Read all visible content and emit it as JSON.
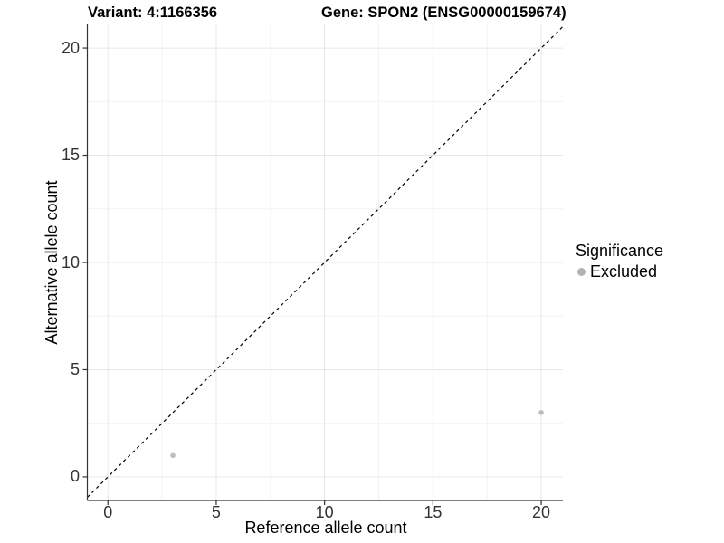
{
  "chart_data": {
    "type": "scatter",
    "title_left": "Variant: 4:1166356",
    "title_right": "Gene: SPON2 (ENSG00000159674)",
    "xlabel": "Reference allele count",
    "ylabel": "Alternative allele count",
    "xlim": [
      -0.95,
      21.0
    ],
    "ylim": [
      -1.1,
      21.1
    ],
    "x_ticks": [
      0,
      5,
      10,
      15,
      20
    ],
    "y_ticks": [
      0,
      5,
      10,
      15,
      20
    ],
    "grid": "major+minor",
    "legend_position": "right",
    "reference_line": {
      "slope": 1,
      "intercept": 0,
      "style": "dashed",
      "color": "#000000"
    },
    "series": [
      {
        "name": "Excluded",
        "color": "#bebebe",
        "points": [
          [
            3,
            1
          ],
          [
            20,
            3
          ]
        ]
      }
    ],
    "legend": {
      "title": "Significance",
      "items": [
        {
          "label": "Excluded",
          "color": "#b3b3b3"
        }
      ]
    },
    "style": {
      "grid_major": "#e7e7e7",
      "grid_minor": "#f2f2f2",
      "axis_line": "#333333",
      "tick_mark": "#333333",
      "tick_text": "#333333"
    }
  }
}
